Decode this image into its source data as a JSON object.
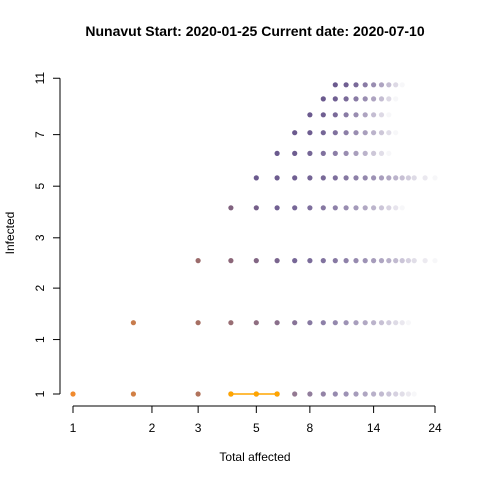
{
  "chart_data": {
    "type": "scatter",
    "title": "Nunavut Start:  2020-01-25   Current date:  2020-07-10",
    "xlabel": "Total affected",
    "ylabel": "Infected",
    "x_scale": "log",
    "y_scale": "log",
    "xlim": [
      1,
      24
    ],
    "ylim": [
      1,
      11
    ],
    "x_ticks": [
      1,
      2,
      3,
      5,
      8,
      14,
      24
    ],
    "x_tick_labels": [
      "1",
      "2",
      "3",
      "5",
      "8",
      "14",
      "24"
    ],
    "y_ticks": [
      1,
      1.5,
      2.2,
      3.2,
      4.7,
      6.9,
      10.5
    ],
    "y_tick_labels": [
      "1",
      "1",
      "2",
      "3",
      "5",
      "7",
      "11"
    ],
    "grid": false,
    "legend": "none",
    "point_x_values": [
      1,
      1.7,
      3,
      4,
      5,
      6,
      7,
      8,
      9,
      10,
      11,
      12,
      13,
      14,
      15,
      16,
      17,
      18,
      19,
      20,
      22,
      24
    ],
    "point_rows": [
      {
        "infected": 1,
        "from_x": 1,
        "to_x": 20
      },
      {
        "infected": 1.7,
        "from_x": 1.7,
        "to_x": 19
      },
      {
        "infected": 2.7,
        "from_x": 3,
        "to_x": 24
      },
      {
        "infected": 4,
        "from_x": 4,
        "to_x": 18
      },
      {
        "infected": 5,
        "from_x": 5,
        "to_x": 24
      },
      {
        "infected": 6,
        "from_x": 6,
        "to_x": 16
      },
      {
        "infected": 7,
        "from_x": 7,
        "to_x": 17
      },
      {
        "infected": 8,
        "from_x": 8,
        "to_x": 16
      },
      {
        "infected": 9,
        "from_x": 9,
        "to_x": 17
      },
      {
        "infected": 10,
        "from_x": 10,
        "to_x": 18
      }
    ],
    "series": [
      {
        "x": [
          4,
          5,
          6
        ],
        "y": [
          1,
          1,
          1
        ],
        "color": "#ffa500"
      }
    ],
    "colors": {
      "early": "#f08a2e",
      "late": "#6b5a8e",
      "line": "#ffa500"
    }
  }
}
